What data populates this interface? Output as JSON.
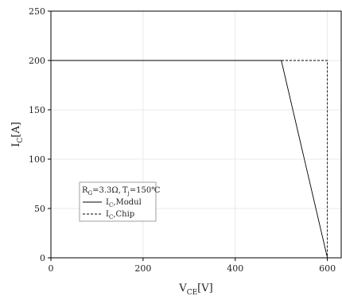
{
  "chart_data": {
    "type": "line",
    "xlabel": {
      "main": "V",
      "sub": "CE",
      "unit": "[V]"
    },
    "ylabel": {
      "main": "I",
      "sub": "C",
      "unit": "[A]"
    },
    "xlim": [
      0,
      630
    ],
    "ylim": [
      0,
      250
    ],
    "xticks": [
      0,
      200,
      400,
      600
    ],
    "yticks": [
      0,
      50,
      100,
      150,
      200,
      250
    ],
    "grid": true,
    "legend_placement": "lower-left",
    "legend": {
      "conditions": {
        "r_main": "R",
        "r_sub": "G",
        "r_value": "=3.3Ω,",
        "t_main": "T",
        "t_sub": "j",
        "t_value": "=150℃"
      }
    },
    "series": [
      {
        "name": "Modul",
        "name_main": "I",
        "name_sub": "C",
        "name_suffix": ",Modul",
        "style": "solid",
        "x": [
          0,
          500,
          600
        ],
        "y": [
          200,
          200,
          0
        ]
      },
      {
        "name": "Chip",
        "name_main": "I",
        "name_sub": "C",
        "name_suffix": ",Chip",
        "style": "dashed",
        "x": [
          0,
          600,
          600
        ],
        "y": [
          200,
          200,
          0
        ]
      }
    ]
  }
}
